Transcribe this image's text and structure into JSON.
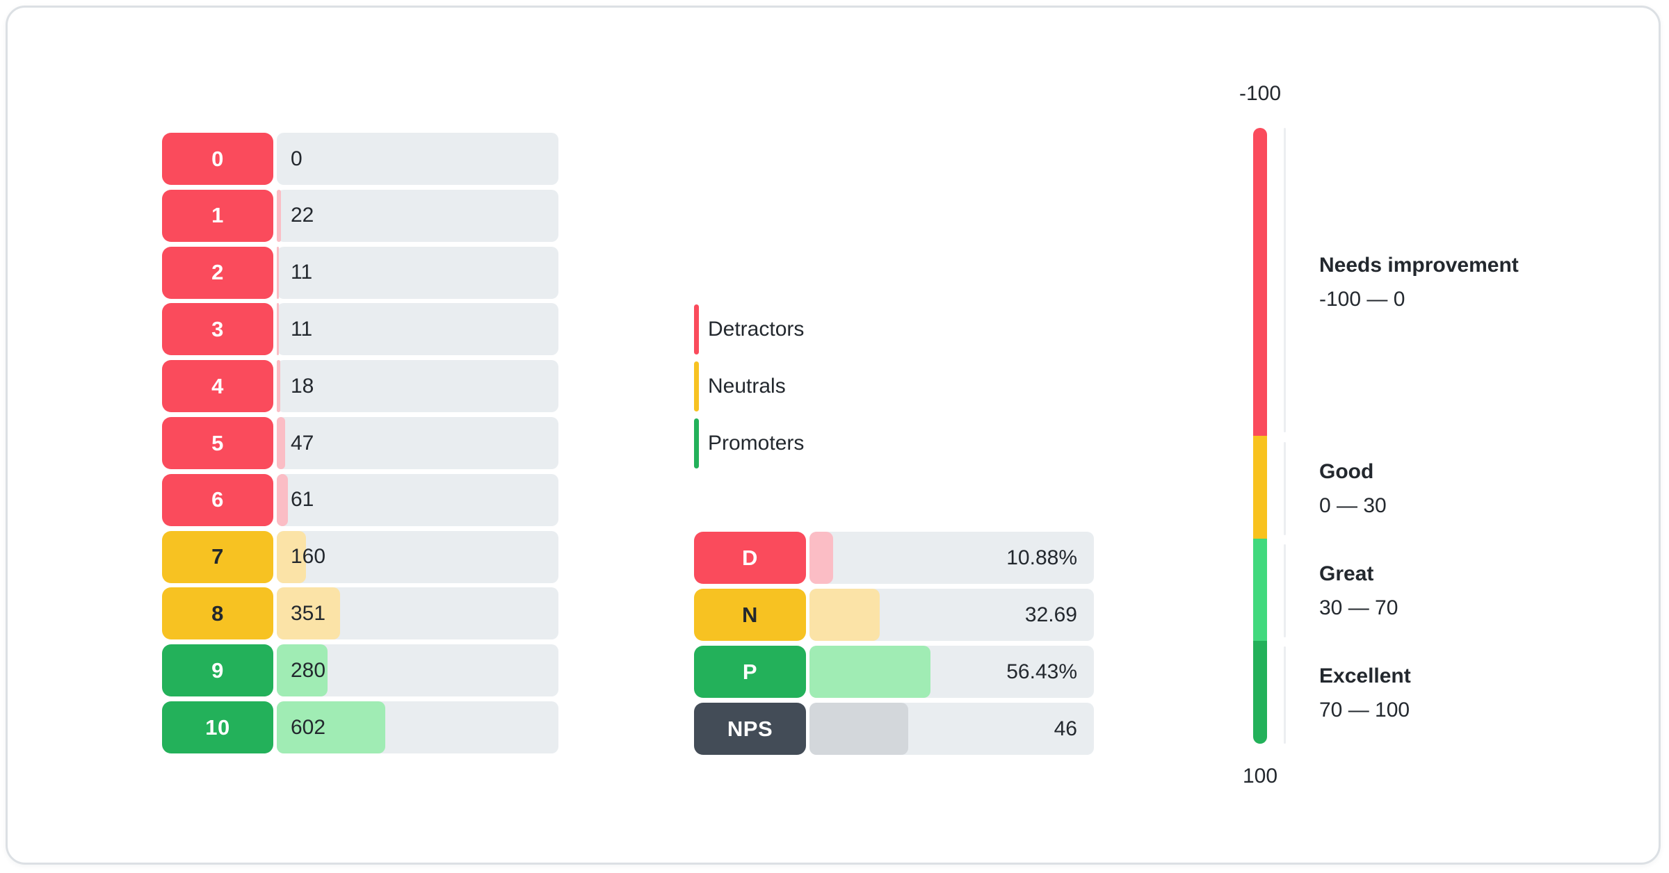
{
  "colors": {
    "card_border": "#DCE0E4",
    "track_bg": "#E9EDF0",
    "text_dark": "#23282E",
    "text_light": "#FFFFFF",
    "tick_line": "#ECEEF1",
    "groups": {
      "detractor": {
        "chip": "#FA4B5C",
        "fill": "#FBBDC5",
        "label_text": "#FFFFFF"
      },
      "neutral": {
        "chip": "#F7C222",
        "fill": "#FBE3A7",
        "label_text": "#23282E"
      },
      "promoter": {
        "chip": "#23B15A",
        "fill": "#A0ECB4",
        "label_text": "#FFFFFF"
      },
      "nps": {
        "chip": "#434C57",
        "fill": "#D3D7DB",
        "label_text": "#FFFFFF"
      }
    },
    "gauge_zones": {
      "red": "#FA4B5C",
      "yellow": "#F8C21E",
      "light_green": "#41D97D",
      "dark_green": "#23B15A"
    }
  },
  "chart_data": {
    "distribution": {
      "type": "bar",
      "orientation": "horizontal",
      "categories": [
        "0",
        "1",
        "2",
        "3",
        "4",
        "5",
        "6",
        "7",
        "8",
        "9",
        "10"
      ],
      "values": [
        0,
        22,
        11,
        11,
        18,
        47,
        61,
        160,
        351,
        280,
        602
      ],
      "groups": [
        "detractor",
        "detractor",
        "detractor",
        "detractor",
        "detractor",
        "detractor",
        "detractor",
        "neutral",
        "neutral",
        "promoter",
        "promoter"
      ]
    },
    "legend": {
      "items": [
        {
          "label": "Detractors",
          "group": "detractor"
        },
        {
          "label": "Neutrals",
          "group": "neutral"
        },
        {
          "label": "Promoters",
          "group": "promoter"
        }
      ]
    },
    "summary": {
      "type": "bar",
      "orientation": "horizontal",
      "categories": [
        "D",
        "N",
        "P",
        "NPS"
      ],
      "values": [
        10.88,
        32.69,
        56.43,
        46
      ],
      "value_labels": [
        "10.88%",
        "32.69",
        "56.43%",
        "46"
      ],
      "groups": [
        "detractor",
        "neutral",
        "promoter",
        "nps"
      ]
    },
    "gauge": {
      "type": "gauge",
      "min": -100,
      "max": 100,
      "top_label": "-100",
      "bottom_label": "100",
      "zones": [
        {
          "title": "Needs improvement",
          "range_label": "-100 — 0",
          "from": -100,
          "to": 0,
          "color": "red"
        },
        {
          "title": "Good",
          "range_label": "0 — 30",
          "from": 0,
          "to": 30,
          "color": "yellow"
        },
        {
          "title": "Great",
          "range_label": "30 — 70",
          "from": 30,
          "to": 70,
          "color": "light_green"
        },
        {
          "title": "Excellent",
          "range_label": "70 — 100",
          "from": 70,
          "to": 100,
          "color": "dark_green"
        }
      ]
    }
  }
}
